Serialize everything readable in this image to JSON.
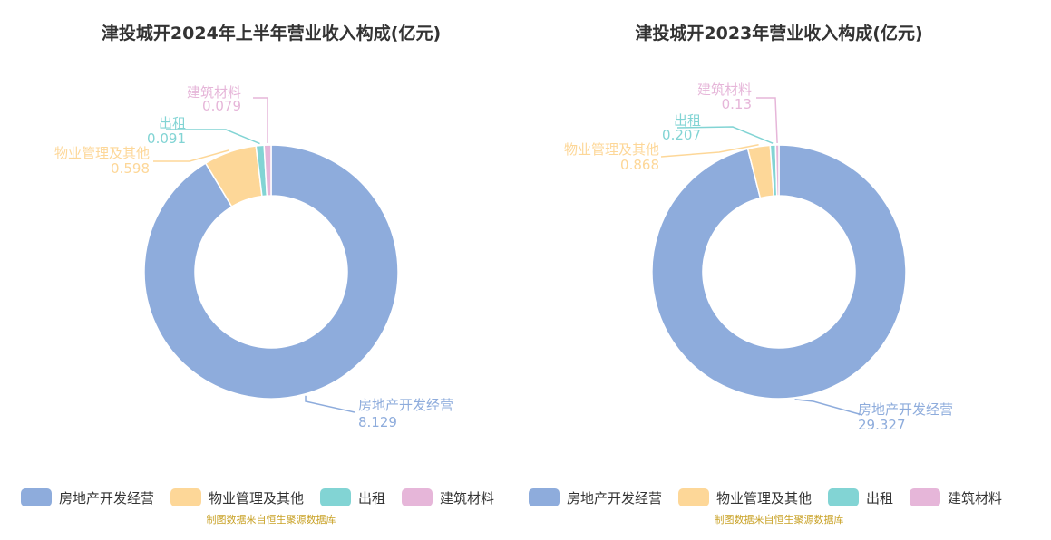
{
  "source_note": "制图数据来自恒生聚源数据库",
  "categories": [
    "房地产开发经营",
    "物业管理及其他",
    "出租",
    "建筑材料"
  ],
  "colors": {
    "房地产开发经营": "#8eacdc",
    "物业管理及其他": "#fdd798",
    "出租": "#82d4d4",
    "建筑材料": "#e6b6d9"
  },
  "chart_data": [
    {
      "type": "pie",
      "donut": true,
      "title": "津投城开2024年上半年营业收入构成(亿元)",
      "slices": [
        {
          "label": "房地产开发经营",
          "value": 8.129,
          "value_text": "8.129"
        },
        {
          "label": "物业管理及其他",
          "value": 0.598,
          "value_text": "0.598"
        },
        {
          "label": "出租",
          "value": 0.091,
          "value_text": "0.091"
        },
        {
          "label": "建筑材料",
          "value": 0.079,
          "value_text": "0.079"
        }
      ],
      "legend": "bottom"
    },
    {
      "type": "pie",
      "donut": true,
      "title": "津投城开2023年营业收入构成(亿元)",
      "slices": [
        {
          "label": "房地产开发经营",
          "value": 29.327,
          "value_text": "29.327"
        },
        {
          "label": "物业管理及其他",
          "value": 0.868,
          "value_text": "0.868"
        },
        {
          "label": "出租",
          "value": 0.207,
          "value_text": "0.207"
        },
        {
          "label": "建筑材料",
          "value": 0.13,
          "value_text": "0.13"
        }
      ],
      "legend": "bottom"
    }
  ]
}
